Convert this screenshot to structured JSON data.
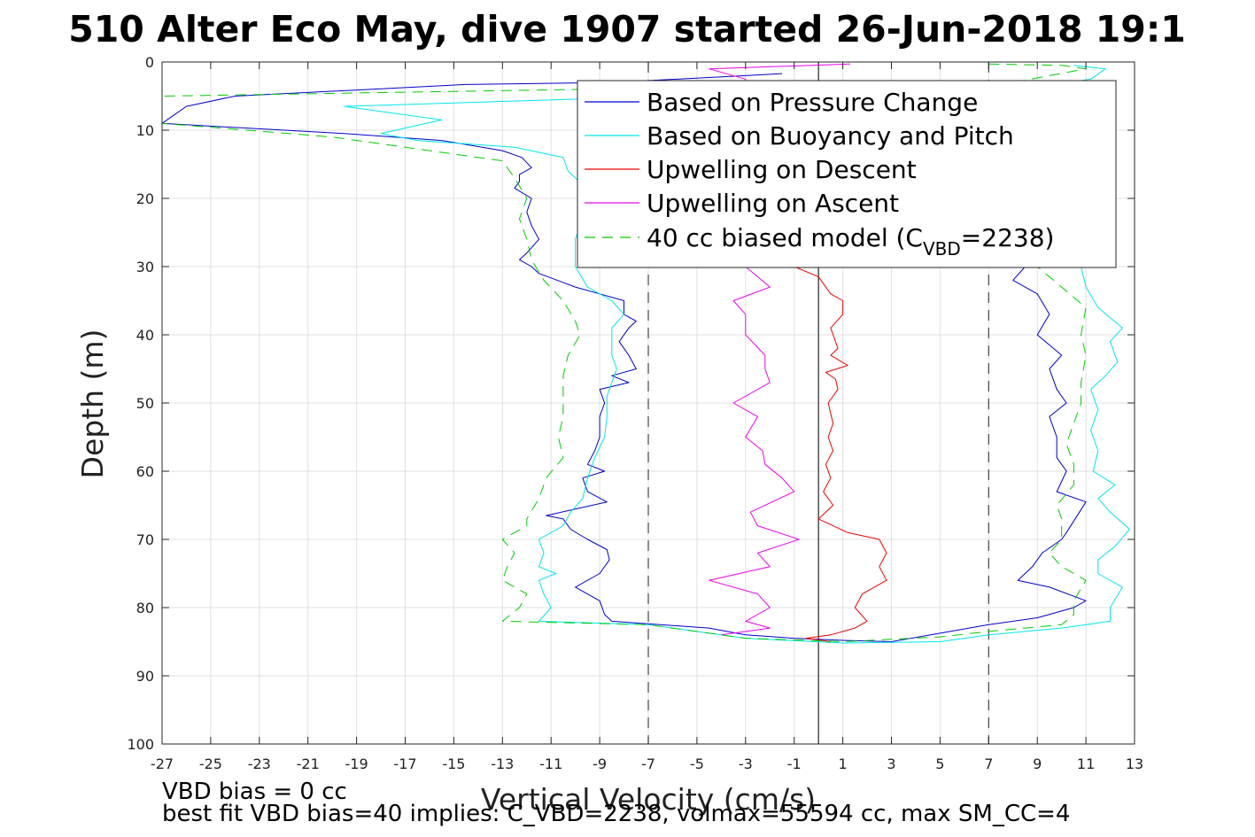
{
  "chart_data": {
    "type": "line",
    "title": "510 Alter Eco May, dive 1907 started 26-Jun-2018 19:1",
    "xlabel": "Vertical Velocity (cm/s)",
    "ylabel": "Depth (m)",
    "xlim": [
      -27,
      13
    ],
    "ylim": [
      0,
      100
    ],
    "y_reversed": true,
    "grid": true,
    "legend_position": "top-right",
    "x_ticks": [
      -27,
      -25,
      -23,
      -21,
      -19,
      -17,
      -15,
      -13,
      -11,
      -9,
      -7,
      -5,
      -3,
      -1,
      1,
      3,
      5,
      7,
      9,
      11,
      13
    ],
    "y_ticks": [
      0,
      10,
      20,
      30,
      40,
      50,
      60,
      70,
      80,
      90,
      100
    ],
    "series": [
      {
        "name": "Based on Pressure Change",
        "color": "#0000cc",
        "style": "solid",
        "points": [
          [
            -1.5,
            1.7
          ],
          [
            -3,
            2
          ],
          [
            -8.5,
            3
          ],
          [
            -14.5,
            3.3
          ],
          [
            -24,
            5
          ],
          [
            -26,
            6.5
          ],
          [
            -27,
            9
          ],
          [
            -19.5,
            10.5
          ],
          [
            -15.5,
            11.5
          ],
          [
            -13,
            13
          ],
          [
            -12.2,
            14
          ],
          [
            -11.8,
            15.5
          ],
          [
            -12.3,
            16.5
          ],
          [
            -12.3,
            17.5
          ],
          [
            -12.5,
            18.5
          ],
          [
            -11.8,
            20
          ],
          [
            -12,
            22
          ],
          [
            -11.8,
            24
          ],
          [
            -11.5,
            26
          ],
          [
            -12,
            28
          ],
          [
            -12.3,
            29
          ],
          [
            -11.8,
            30
          ],
          [
            -11.5,
            31
          ],
          [
            -10,
            33
          ],
          [
            -9,
            34
          ],
          [
            -8,
            35
          ],
          [
            -8,
            37
          ],
          [
            -7.5,
            38
          ],
          [
            -7.8,
            39
          ],
          [
            -8.2,
            41
          ],
          [
            -7.8,
            43
          ],
          [
            -7.5,
            45
          ],
          [
            -8.5,
            46
          ],
          [
            -7.8,
            47
          ],
          [
            -9,
            48
          ],
          [
            -8.8,
            50
          ],
          [
            -9,
            52
          ],
          [
            -9,
            55
          ],
          [
            -9.2,
            57
          ],
          [
            -9.5,
            59
          ],
          [
            -8.8,
            60
          ],
          [
            -9.7,
            61
          ],
          [
            -9.5,
            63
          ],
          [
            -8.7,
            64.5
          ],
          [
            -11.2,
            66.5
          ],
          [
            -10.5,
            67
          ],
          [
            -10.2,
            68.5
          ],
          [
            -9.5,
            70
          ],
          [
            -8.7,
            71.5
          ],
          [
            -8.6,
            73
          ],
          [
            -9,
            75
          ],
          [
            -10,
            77
          ],
          [
            -9,
            79
          ],
          [
            -8.8,
            81
          ],
          [
            -8.5,
            82
          ],
          [
            -4.5,
            83
          ],
          [
            -3,
            84
          ],
          [
            -1,
            84.5
          ],
          [
            1,
            84.8
          ],
          [
            3,
            85
          ],
          [
            7,
            82.5
          ],
          [
            9,
            81.5
          ],
          [
            10.5,
            80
          ],
          [
            11,
            79
          ],
          [
            9.5,
            77
          ],
          [
            8.2,
            76
          ],
          [
            8.8,
            74
          ],
          [
            9.2,
            72
          ],
          [
            10,
            70
          ],
          [
            10.2,
            69
          ],
          [
            11,
            64.5
          ],
          [
            9.8,
            63
          ],
          [
            10.2,
            60
          ],
          [
            9.8,
            58
          ],
          [
            9.8,
            55
          ],
          [
            9.5,
            52
          ],
          [
            10.2,
            50
          ],
          [
            9.8,
            48
          ],
          [
            9.5,
            45
          ],
          [
            10,
            43
          ],
          [
            9,
            40
          ],
          [
            9.5,
            37
          ],
          [
            9,
            34
          ],
          [
            8,
            32
          ],
          [
            8.5,
            30
          ],
          [
            8,
            25
          ]
        ]
      },
      {
        "name": "Based on Buoyancy and Pitch",
        "color": "#00e5ee",
        "style": "solid",
        "points": [
          [
            10.5,
            0.5
          ],
          [
            11.8,
            1
          ],
          [
            11.2,
            2.5
          ],
          [
            9.5,
            3.5
          ],
          [
            -6,
            5
          ],
          [
            -19.5,
            6.5
          ],
          [
            -15.5,
            8.5
          ],
          [
            -18,
            10.5
          ],
          [
            -16.5,
            11.5
          ],
          [
            -12.5,
            12.5
          ],
          [
            -10.5,
            14
          ],
          [
            -10.3,
            16
          ],
          [
            -9.7,
            18
          ],
          [
            -9.5,
            20
          ],
          [
            -9.7,
            22
          ],
          [
            -9.8,
            24
          ],
          [
            -10,
            26
          ],
          [
            -10,
            28
          ],
          [
            -10,
            30
          ],
          [
            -9.5,
            33
          ],
          [
            -8.5,
            35
          ],
          [
            -8,
            37
          ],
          [
            -8.5,
            39
          ],
          [
            -8.5,
            41
          ],
          [
            -8.5,
            43
          ],
          [
            -8.3,
            45
          ],
          [
            -8.5,
            47
          ],
          [
            -8.7,
            49
          ],
          [
            -8.7,
            52
          ],
          [
            -8.8,
            55
          ],
          [
            -9.2,
            58
          ],
          [
            -9.5,
            61
          ],
          [
            -9.7,
            64
          ],
          [
            -10.2,
            66
          ],
          [
            -10.5,
            68
          ],
          [
            -11.5,
            70
          ],
          [
            -11.3,
            72
          ],
          [
            -11.5,
            74
          ],
          [
            -10.8,
            75
          ],
          [
            -11.5,
            76
          ],
          [
            -11.3,
            78
          ],
          [
            -11,
            80
          ],
          [
            -11.5,
            82
          ],
          [
            -7,
            82.5
          ],
          [
            -3,
            84.5
          ],
          [
            1,
            85.2
          ],
          [
            5,
            85
          ],
          [
            7,
            84
          ],
          [
            10,
            83
          ],
          [
            12,
            82
          ],
          [
            12,
            80
          ],
          [
            12.5,
            77
          ],
          [
            11.5,
            75
          ],
          [
            11.5,
            73
          ],
          [
            12.2,
            71
          ],
          [
            12.8,
            68.5
          ],
          [
            12,
            66
          ],
          [
            11.5,
            64
          ],
          [
            12.2,
            62
          ],
          [
            11.3,
            60
          ],
          [
            11.5,
            57
          ],
          [
            11.2,
            54
          ],
          [
            11.5,
            51
          ],
          [
            11.2,
            48
          ],
          [
            11.8,
            46
          ],
          [
            12.3,
            44
          ],
          [
            12,
            41
          ],
          [
            12.5,
            39
          ],
          [
            11.5,
            36
          ],
          [
            11,
            33
          ],
          [
            10.8,
            30
          ],
          [
            10.5,
            27
          ]
        ]
      },
      {
        "name": "Upwelling on Descent",
        "color": "#ee0000",
        "style": "solid",
        "points": [
          [
            -0.5,
            8.5
          ],
          [
            -1,
            9
          ],
          [
            -1,
            30
          ],
          [
            0,
            31.5
          ],
          [
            0.5,
            34
          ],
          [
            1,
            35
          ],
          [
            1,
            37
          ],
          [
            0.5,
            39
          ],
          [
            0.8,
            42
          ],
          [
            0.5,
            43
          ],
          [
            1.2,
            44.5
          ],
          [
            0.3,
            45.5
          ],
          [
            0.7,
            46.5
          ],
          [
            0.8,
            48
          ],
          [
            0.4,
            50
          ],
          [
            0.6,
            53
          ],
          [
            0.4,
            55
          ],
          [
            0.6,
            57
          ],
          [
            0.3,
            59
          ],
          [
            0.5,
            61
          ],
          [
            0.2,
            63
          ],
          [
            0.6,
            65
          ],
          [
            0,
            67
          ],
          [
            1.2,
            69
          ],
          [
            2.5,
            70
          ],
          [
            2.8,
            72
          ],
          [
            2.5,
            74
          ],
          [
            2.8,
            76
          ],
          [
            1.8,
            78
          ],
          [
            1.5,
            80
          ],
          [
            2,
            82
          ],
          [
            1.5,
            83
          ],
          [
            0.5,
            84
          ],
          [
            -0.5,
            84.5
          ],
          [
            0.5,
            85
          ]
        ]
      },
      {
        "name": "Upwelling on Ascent",
        "color": "#ee00ee",
        "style": "solid",
        "points": [
          [
            1.3,
            0.3
          ],
          [
            -4.5,
            1
          ],
          [
            -3,
            2.5
          ],
          [
            -3,
            30
          ],
          [
            -2,
            33
          ],
          [
            -3.5,
            35
          ],
          [
            -3,
            37
          ],
          [
            -3,
            40
          ],
          [
            -2.2,
            43
          ],
          [
            -2.2,
            45
          ],
          [
            -2,
            47
          ],
          [
            -3.5,
            50
          ],
          [
            -2.5,
            52
          ],
          [
            -3,
            55
          ],
          [
            -2.3,
            57
          ],
          [
            -2.2,
            59
          ],
          [
            -1.5,
            61
          ],
          [
            -1,
            63
          ],
          [
            -2.8,
            66
          ],
          [
            -2.5,
            68
          ],
          [
            -0.8,
            70
          ],
          [
            -2.5,
            72
          ],
          [
            -2,
            74
          ],
          [
            -4.5,
            76
          ],
          [
            -2.5,
            78
          ],
          [
            -2,
            80
          ],
          [
            -3,
            82
          ],
          [
            -2,
            83
          ],
          [
            -4,
            84
          ]
        ]
      },
      {
        "name": "40 cc biased model (C_VBD=2238)",
        "color": "#00cc00",
        "style": "dashed",
        "points": [
          [
            7,
            0.3
          ],
          [
            10,
            0.5
          ],
          [
            11,
            1
          ],
          [
            8,
            3
          ],
          [
            -27,
            5
          ],
          [
            -27,
            9
          ],
          [
            -23.5,
            10
          ],
          [
            -20,
            11
          ],
          [
            -13,
            14.5
          ],
          [
            -12.5,
            17
          ],
          [
            -12,
            20
          ],
          [
            -12.3,
            23
          ],
          [
            -12,
            26
          ],
          [
            -11.8,
            29
          ],
          [
            -11.3,
            32
          ],
          [
            -10.5,
            35
          ],
          [
            -10,
            38
          ],
          [
            -9.8,
            40
          ],
          [
            -10.3,
            43
          ],
          [
            -10.5,
            46
          ],
          [
            -10.5,
            49
          ],
          [
            -10.5,
            52
          ],
          [
            -10.7,
            55
          ],
          [
            -10.5,
            58
          ],
          [
            -11.2,
            61
          ],
          [
            -11.5,
            64
          ],
          [
            -12,
            67
          ],
          [
            -12,
            68
          ],
          [
            -13,
            70
          ],
          [
            -12.5,
            72
          ],
          [
            -12.8,
            74
          ],
          [
            -13,
            76
          ],
          [
            -12,
            78
          ],
          [
            -12.3,
            80
          ],
          [
            -13,
            82
          ],
          [
            -7,
            82.5
          ],
          [
            -3,
            84.5
          ],
          [
            1,
            85
          ],
          [
            5,
            84.3
          ],
          [
            7,
            83.5
          ],
          [
            10,
            82.5
          ],
          [
            10.5,
            81
          ],
          [
            10.5,
            79
          ],
          [
            11,
            76
          ],
          [
            10,
            74
          ],
          [
            9.5,
            72
          ],
          [
            10,
            70
          ],
          [
            10,
            67
          ],
          [
            9.8,
            65
          ],
          [
            10.5,
            62
          ],
          [
            10.5,
            59
          ],
          [
            10.2,
            56
          ],
          [
            10.5,
            53
          ],
          [
            10.8,
            50
          ],
          [
            10.8,
            47
          ],
          [
            11,
            43
          ],
          [
            10.8,
            40
          ],
          [
            11,
            36
          ],
          [
            10,
            33
          ],
          [
            9,
            30
          ]
        ]
      }
    ],
    "vertical_lines": [
      {
        "x": -7,
        "style": "dashed",
        "color": "#444444"
      },
      {
        "x": 0,
        "style": "solid",
        "color": "#222222"
      },
      {
        "x": 7,
        "style": "dashed",
        "color": "#444444"
      }
    ],
    "annotations": [
      "VBD bias = 0 cc",
      "best fit VBD bias=40 implies: C_VBD=2238, volmax=55594 cc, max SM_CC=4"
    ]
  },
  "legend": {
    "items": [
      {
        "label": "Based on Pressure Change",
        "color": "#0000cc",
        "dashed": false
      },
      {
        "label": "Based on Buoyancy and Pitch",
        "color": "#00e5ee",
        "dashed": false
      },
      {
        "label": "Upwelling on Descent",
        "color": "#ee0000",
        "dashed": false
      },
      {
        "label": "Upwelling on Ascent",
        "color": "#ee00ee",
        "dashed": false
      },
      {
        "label_main": "40 cc biased model (C",
        "label_sub": "VBD",
        "label_end": "=2238)",
        "color": "#00cc00",
        "dashed": true
      }
    ]
  }
}
